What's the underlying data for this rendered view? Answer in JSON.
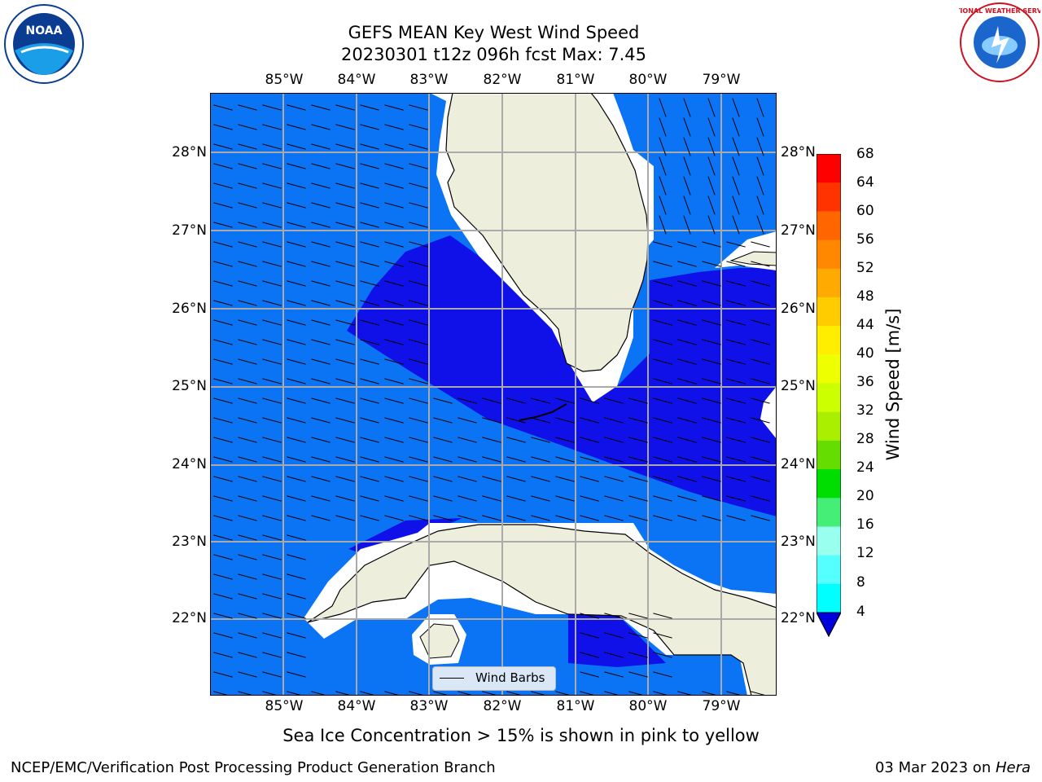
{
  "title": {
    "line1": "GEFS MEAN Key West Wind Speed",
    "line2": "20230301 t12z 096h fcst   Max: 7.45"
  },
  "axes": {
    "lon_labels": [
      "85°W",
      "84°W",
      "83°W",
      "82°W",
      "81°W",
      "80°W",
      "79°W"
    ],
    "lat_labels": [
      "28°N",
      "27°N",
      "26°N",
      "25°N",
      "24°N",
      "23°N",
      "22°N"
    ]
  },
  "legend": {
    "label": "Wind Barbs"
  },
  "colorbar": {
    "title": "Wind Speed [m/s]",
    "ticks": [
      "68",
      "64",
      "60",
      "56",
      "52",
      "48",
      "44",
      "40",
      "36",
      "32",
      "28",
      "24",
      "20",
      "16",
      "12",
      "8",
      "4"
    ],
    "colors": [
      "#ff0000",
      "#ff3300",
      "#ff6600",
      "#ff8800",
      "#ffaa00",
      "#ffcc00",
      "#ffee00",
      "#eeff00",
      "#ccff00",
      "#aaee00",
      "#66dd00",
      "#00dd00",
      "#44ee77",
      "#99ffee",
      "#55ffff",
      "#00ffff",
      "#00ddff",
      "#0077ff"
    ]
  },
  "note": "Sea Ice Concentration > 15% is shown in pink to yellow",
  "footer": {
    "left": "NCEP/EMC/Verification Post Processing Product Generation Branch",
    "date": "03 Mar 2023 on ",
    "machine": "Hera"
  },
  "logos": {
    "noaa": "NOAA",
    "nws": "NATIONAL WEATHER SERVICE"
  },
  "colors": {
    "ocean_light": "#0a74f5",
    "ocean_dark": "#1010e8",
    "land": "#eeeedd",
    "grid": "#aaaaaa"
  }
}
